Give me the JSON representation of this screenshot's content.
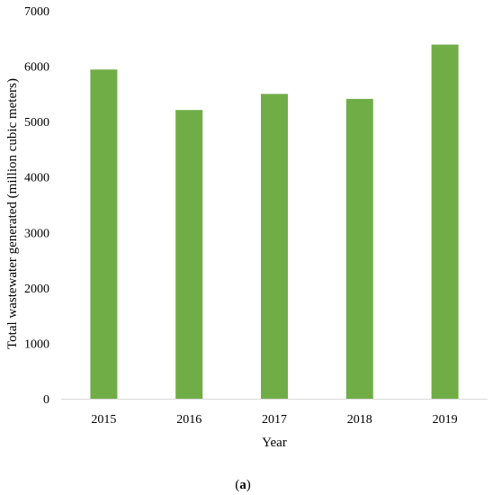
{
  "chart_data": {
    "type": "bar",
    "categories": [
      "2015",
      "2016",
      "2017",
      "2018",
      "2019"
    ],
    "values": [
      5940,
      5210,
      5500,
      5410,
      6390
    ],
    "title": "",
    "xlabel": "Year",
    "ylabel": "Total wastewater generated (million cubic meters)",
    "ylim": [
      0,
      7000
    ],
    "yticks": [
      "0",
      "1000",
      "2000",
      "3000",
      "4000",
      "5000",
      "6000",
      "7000"
    ],
    "grid": false,
    "legend": "none",
    "bar_color": "#70AD47"
  },
  "caption": {
    "open": "(",
    "letter": "a",
    "close": ")"
  }
}
